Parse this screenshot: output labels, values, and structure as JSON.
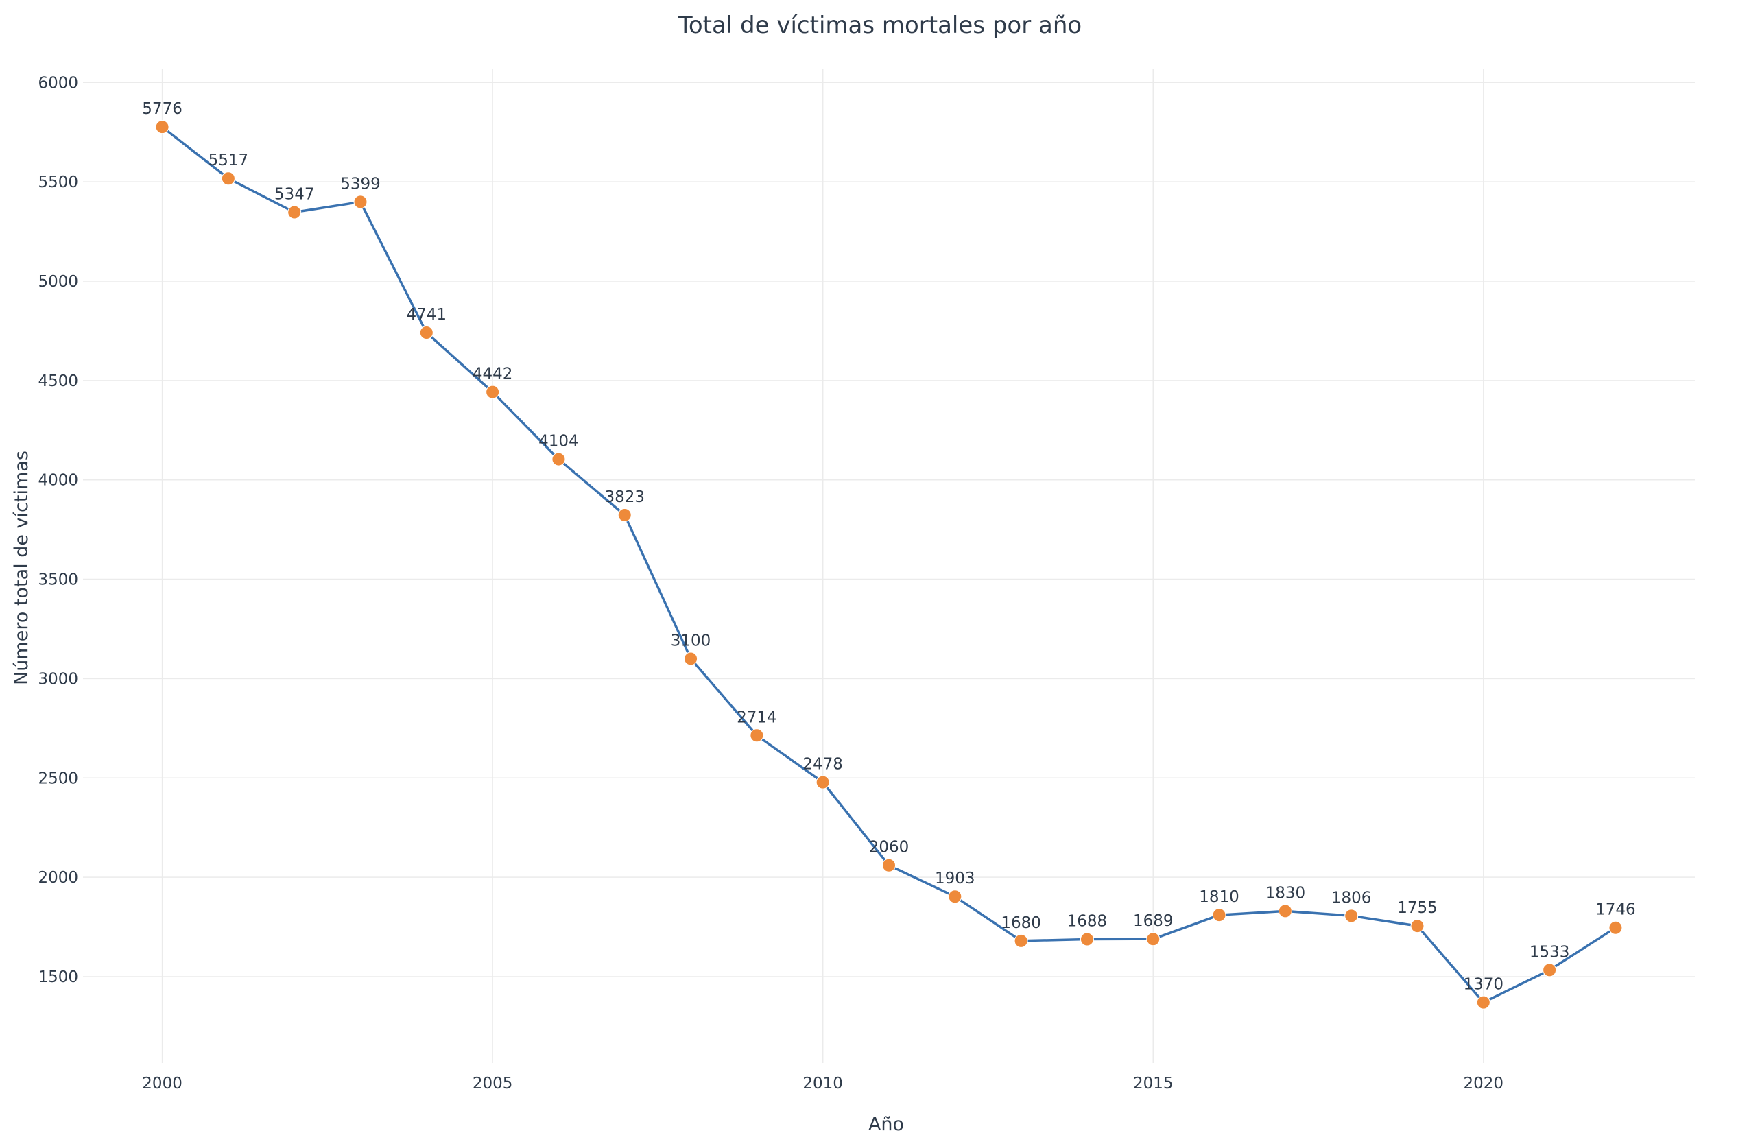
{
  "chart_data": {
    "type": "line",
    "title": "Total de víctimas mortales por año",
    "xlabel": "Año",
    "ylabel": "Número total de víctimas",
    "x": [
      2000,
      2001,
      2002,
      2003,
      2004,
      2005,
      2006,
      2007,
      2008,
      2009,
      2010,
      2011,
      2012,
      2013,
      2014,
      2015,
      2016,
      2017,
      2018,
      2019,
      2020,
      2021,
      2022
    ],
    "series": [
      {
        "values": [
          5776,
          5517,
          5347,
          5399,
          4741,
          4442,
          4104,
          3823,
          3100,
          2714,
          2478,
          2060,
          1903,
          1680,
          1688,
          1689,
          1810,
          1830,
          1806,
          1755,
          1370,
          1533,
          1746
        ]
      }
    ],
    "xlim": [
      1998.8,
      2023.2
    ],
    "ylim": [
      1065,
      6070
    ],
    "xticks": [
      "2000",
      "2005",
      "2010",
      "2015",
      "2020"
    ],
    "yticks": [
      "1500",
      "2000",
      "2500",
      "3000",
      "3500",
      "4000",
      "4500",
      "5000",
      "5500",
      "6000"
    ],
    "grid": true,
    "line_color": "#3a72b0",
    "marker_color": "#ee8a3a"
  }
}
